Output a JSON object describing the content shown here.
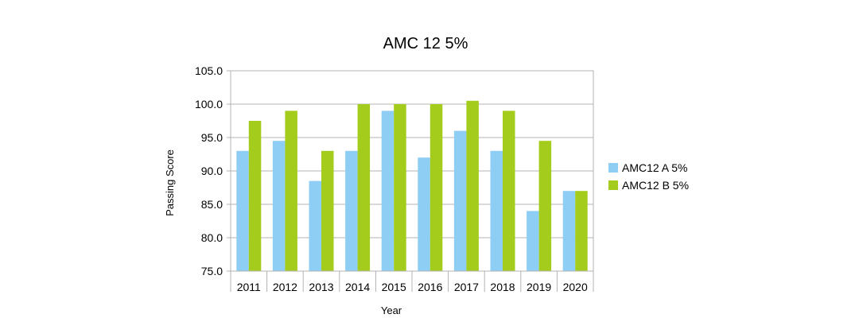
{
  "chart_data": {
    "type": "bar",
    "title": "AMC 12 5%",
    "xlabel": "Year",
    "ylabel": "Passing Score",
    "categories": [
      "2011",
      "2012",
      "2013",
      "2014",
      "2015",
      "2016",
      "2017",
      "2018",
      "2019",
      "2020"
    ],
    "series": [
      {
        "name": "AMC12 A 5%",
        "color": "#8ecdf4",
        "values": [
          93.0,
          94.5,
          88.5,
          93.0,
          99.0,
          92.0,
          96.0,
          93.0,
          84.0,
          87.0
        ]
      },
      {
        "name": "AMC12 B 5%",
        "color": "#a4cc1c",
        "values": [
          97.5,
          99.0,
          93.0,
          100.0,
          100.0,
          100.0,
          100.5,
          99.0,
          94.5,
          87.0
        ]
      }
    ],
    "ylim": [
      75.0,
      105.0
    ],
    "ytick_step": 5,
    "ytick_labels": [
      "75.0",
      "80.0",
      "85.0",
      "90.0",
      "95.0",
      "100.0",
      "105.0"
    ],
    "grid": true,
    "legend_position": "right"
  }
}
